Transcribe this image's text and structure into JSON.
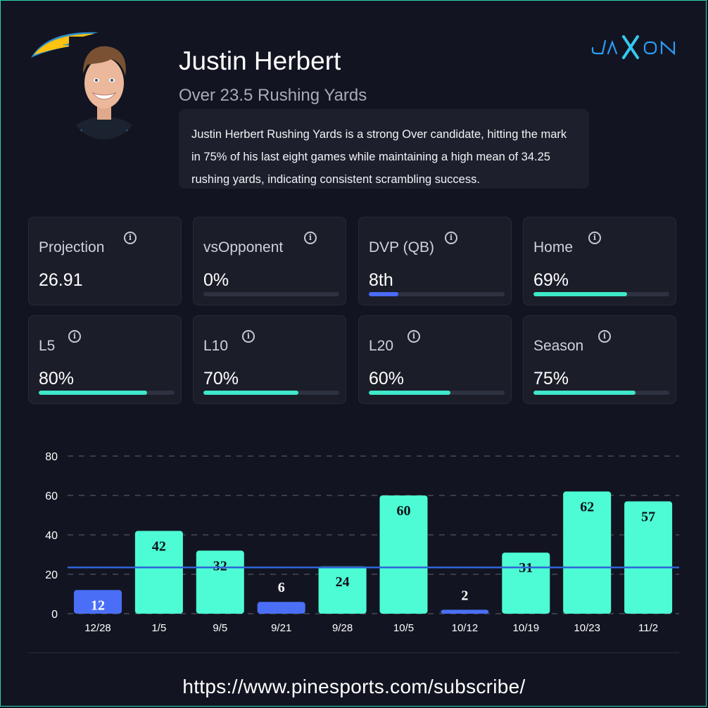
{
  "header": {
    "player_name": "Justin Herbert",
    "prop_line": "Over 23.5 Rushing Yards",
    "summary": "Justin Herbert Rushing Yards is a strong Over candidate, hitting the mark in 75% of his last eight games while maintaining a high mean of 34.25 rushing yards, indicating consistent scrambling success.",
    "team_logo_icon": "chargers-bolt-logo",
    "brand_logo_text": "JAXON"
  },
  "cards": [
    {
      "label": "Projection",
      "value": "26.91",
      "icon": "info-icon"
    },
    {
      "label": "vsOpponent",
      "value": "0%",
      "icon": "info-icon",
      "level": 0,
      "bar_color": "#3ee8c9"
    },
    {
      "label": "DVP (QB)",
      "value": "8th",
      "icon": "info-icon",
      "level": 0.22,
      "bar_color": "#4a6cf7"
    },
    {
      "label": "Home",
      "value": "69%",
      "icon": "info-icon",
      "level": 0.69,
      "bar_color": "#3ee8c9"
    },
    {
      "label": "L5",
      "value": "80%",
      "icon": "info-icon",
      "level": 0.8,
      "bar_color": "#3ee8c9"
    },
    {
      "label": "L10",
      "value": "70%",
      "icon": "info-icon",
      "level": 0.7,
      "bar_color": "#3ee8c9"
    },
    {
      "label": "L20",
      "value": "60%",
      "icon": "info-icon",
      "level": 0.6,
      "bar_color": "#3ee8c9"
    },
    {
      "label": "Season",
      "value": "75%",
      "icon": "info-icon",
      "level": 0.75,
      "bar_color": "#3ee8c9"
    }
  ],
  "chart_data": {
    "type": "bar",
    "categories": [
      "12/28",
      "1/5",
      "9/5",
      "9/21",
      "9/28",
      "10/5",
      "10/12",
      "10/19",
      "10/23",
      "11/2"
    ],
    "values": [
      12,
      42,
      32,
      6,
      24,
      60,
      2,
      31,
      62,
      57
    ],
    "line_value": 23.5,
    "yticks": [
      0,
      20,
      40,
      60,
      80
    ],
    "ylim": [
      0,
      80
    ],
    "grid": true,
    "colors": {
      "over": "#4dfcd4",
      "under": "#4a6ff6",
      "line": "#2f64d8",
      "grid": "#3a3d48"
    }
  },
  "footer": {
    "url": "https://www.pinesports.com/subscribe/"
  }
}
